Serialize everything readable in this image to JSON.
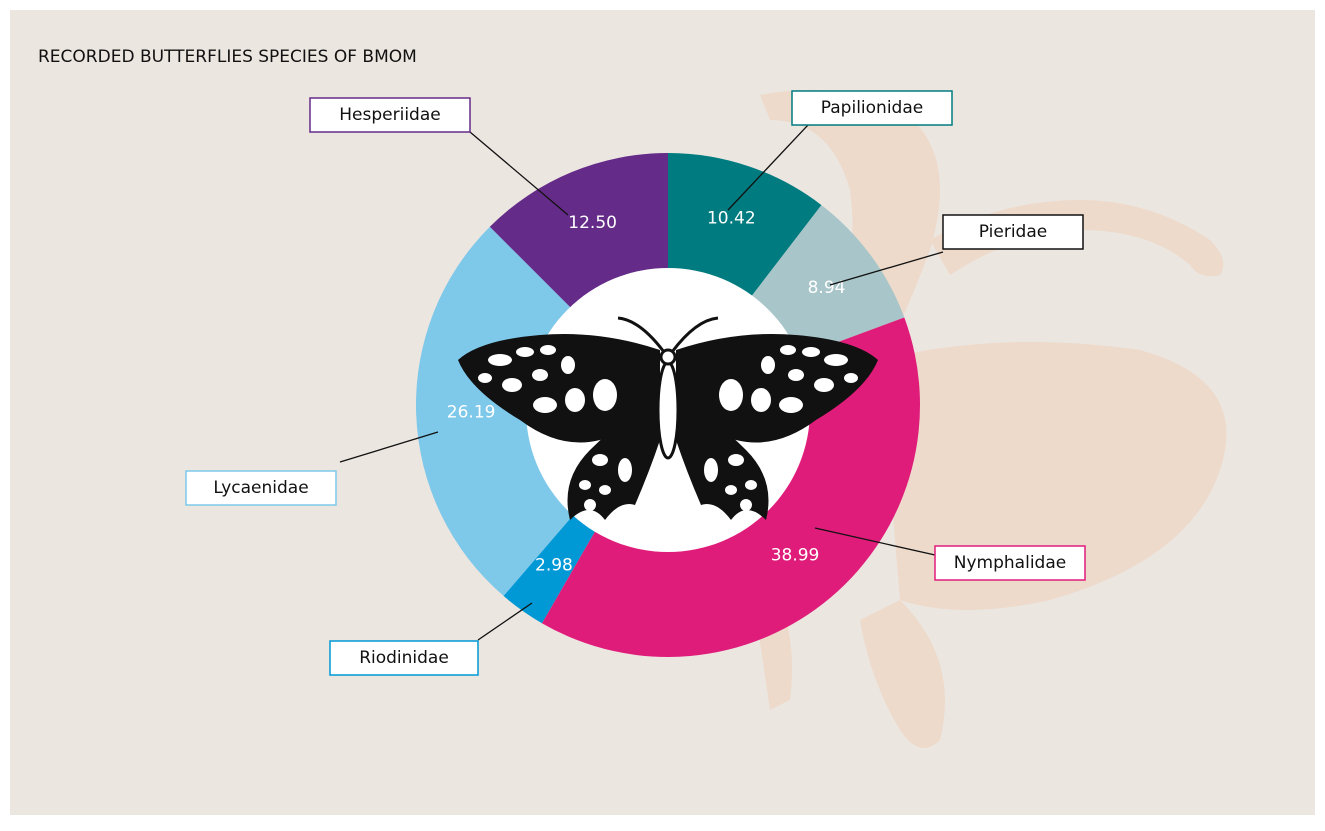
{
  "chart_data": {
    "type": "donut",
    "title": "RECORDED BUTTERFLIES SPECIES OF BMOM",
    "categories": [
      "Papilionidae",
      "Pieridae",
      "Nymphalidae",
      "Riodinidae",
      "Lycaenidae",
      "Hesperiidae"
    ],
    "values": [
      10.42,
      8.94,
      38.99,
      2.98,
      26.19,
      12.5
    ],
    "value_labels": [
      "10.42",
      "8.94",
      "38.99",
      "2.98",
      "26.19",
      "12.50"
    ],
    "colors": [
      "#007b7f",
      "#a8c6c9",
      "#e01c7b",
      "#0099d6",
      "#7ec8ea",
      "#652b88"
    ]
  }
}
